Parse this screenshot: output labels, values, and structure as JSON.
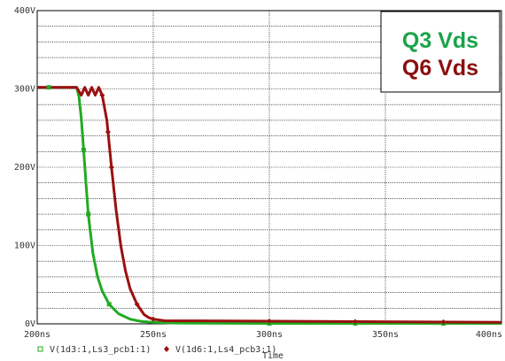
{
  "chart_data": {
    "type": "line",
    "xlabel": "Time",
    "ylabel": "",
    "xlim": [
      200,
      400
    ],
    "ylim": [
      0,
      400
    ],
    "x_ticks": [
      "200ns",
      "250ns",
      "300ns",
      "350ns",
      "400ns"
    ],
    "y_ticks": [
      "0V",
      "100V",
      "200V",
      "300V",
      "400V"
    ],
    "grid": true,
    "legend_position": "bottom-left",
    "annotations": [
      {
        "text": "Q3 Vds",
        "color": "#1aa34a"
      },
      {
        "text": "Q6 Vds",
        "color": "#8b0e0e"
      }
    ],
    "series": [
      {
        "name": "V(1d3:1,Ls3_pcb1:1)",
        "color": "#22aa22",
        "marker": "square",
        "x": [
          200,
          205,
          212,
          217,
          218,
          219,
          220,
          221,
          222,
          224,
          226,
          228,
          231,
          235,
          240,
          245,
          250,
          260,
          300,
          400
        ],
        "y": [
          302,
          302,
          302,
          302,
          290,
          262,
          222,
          180,
          140,
          90,
          60,
          42,
          25,
          13,
          6,
          3,
          2,
          1,
          0.5,
          0.5
        ],
        "marker_x": [
          205,
          220,
          222,
          231,
          300,
          337,
          375
        ]
      },
      {
        "name": "V(1d6:1,Ls4_pcb3:1)",
        "color": "#9b1010",
        "marker": "diamond",
        "x": [
          200,
          213,
          217,
          219,
          220.5,
          222,
          223.5,
          225,
          226.5,
          228,
          230,
          232,
          234,
          236,
          238,
          240,
          243,
          246,
          248,
          250,
          255,
          400
        ],
        "y": [
          302,
          302,
          302,
          292,
          302,
          292,
          302,
          292,
          302,
          292,
          260,
          200,
          145,
          100,
          68,
          45,
          25,
          12,
          8,
          6,
          4,
          2
        ],
        "marker_x": [
          228,
          230.5,
          232,
          243,
          250,
          300,
          337,
          375
        ]
      }
    ]
  }
}
